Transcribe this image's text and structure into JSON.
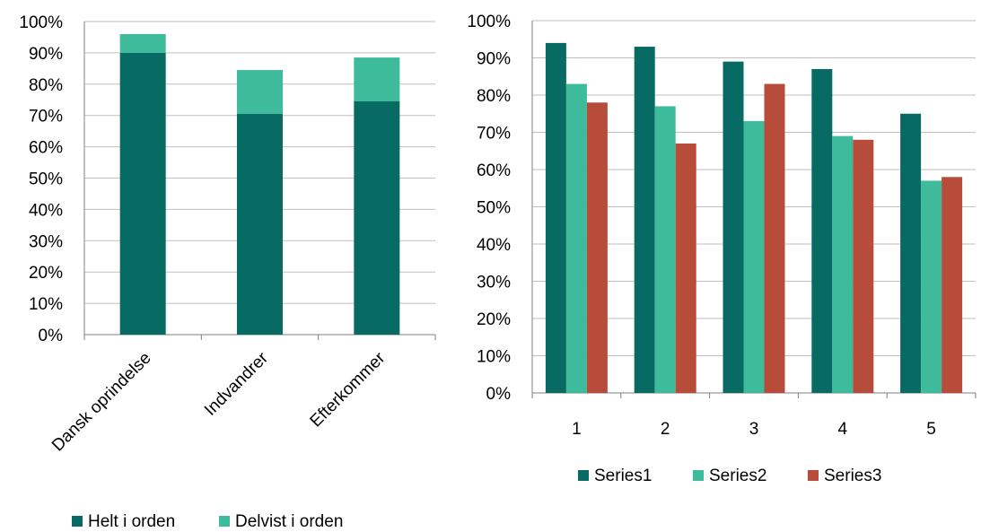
{
  "colors": {
    "dark_teal": "#086B63",
    "light_teal": "#3DBB9A",
    "brick": "#B84C3B",
    "grid": "#BFBFBF",
    "axis": "#7F7F7F"
  },
  "chart_data": [
    {
      "type": "bar",
      "stacked": true,
      "categories": [
        "Dansk oprindelse",
        "Indvandrer",
        "Efterkommer"
      ],
      "series": [
        {
          "name": "Helt i orden",
          "color": "#086B63",
          "values": [
            0.9,
            0.705,
            0.745
          ]
        },
        {
          "name": "Delvist i orden",
          "color": "#3DBB9A",
          "values": [
            0.06,
            0.14,
            0.14
          ]
        }
      ],
      "yticks": [
        "0%",
        "10%",
        "20%",
        "30%",
        "40%",
        "50%",
        "60%",
        "70%",
        "80%",
        "90%",
        "100%"
      ],
      "ylim": [
        0,
        1
      ],
      "grid": true,
      "legend": "bottom"
    },
    {
      "type": "bar",
      "stacked": false,
      "categories": [
        "1",
        "2",
        "3",
        "4",
        "5"
      ],
      "series": [
        {
          "name": "Series1",
          "color": "#086B63",
          "values": [
            0.94,
            0.93,
            0.89,
            0.87,
            0.75
          ]
        },
        {
          "name": "Series2",
          "color": "#3DBB9A",
          "values": [
            0.83,
            0.77,
            0.73,
            0.69,
            0.57
          ]
        },
        {
          "name": "Series3",
          "color": "#B84C3B",
          "values": [
            0.78,
            0.67,
            0.83,
            0.68,
            0.58
          ]
        }
      ],
      "yticks": [
        "0%",
        "10%",
        "20%",
        "30%",
        "40%",
        "50%",
        "60%",
        "70%",
        "80%",
        "90%",
        "100%"
      ],
      "ylim": [
        0,
        1
      ],
      "grid": true,
      "legend": "bottom"
    }
  ]
}
